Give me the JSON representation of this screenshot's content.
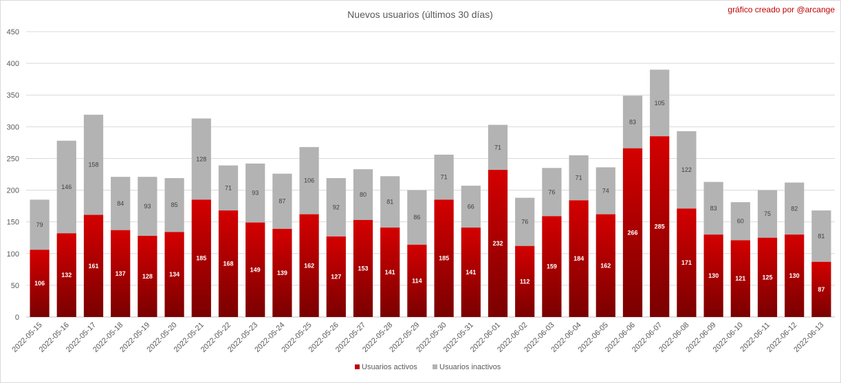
{
  "chart_data": {
    "type": "bar",
    "stacked": true,
    "title": "Nuevos usuarios (últimos 30 días)",
    "credit": "gráfico creado por @arcange",
    "categories": [
      "2022-05-15",
      "2022-05-16",
      "2022-05-17",
      "2022-05-18",
      "2022-05-19",
      "2022-05-20",
      "2022-05-21",
      "2022-05-22",
      "2022-05-23",
      "2022-05-24",
      "2022-05-25",
      "2022-05-26",
      "2022-05-27",
      "2022-05-28",
      "2022-05-29",
      "2022-05-30",
      "2022-05-31",
      "2022-06-01",
      "2022-06-02",
      "2022-06-03",
      "2022-06-04",
      "2022-06-05",
      "2022-06-06",
      "2022-06-07",
      "2022-06-08",
      "2022-06-09",
      "2022-06-10",
      "2022-06-11",
      "2022-06-12",
      "2022-06-13"
    ],
    "series": [
      {
        "name": "Usuarios activos",
        "color": "#c00000",
        "values": [
          106,
          132,
          161,
          137,
          128,
          134,
          185,
          168,
          149,
          139,
          162,
          127,
          153,
          141,
          114,
          185,
          141,
          232,
          112,
          159,
          184,
          162,
          266,
          285,
          171,
          130,
          121,
          125,
          130,
          87
        ]
      },
      {
        "name": "Usuarios inactivos",
        "color": "#b3b3b3",
        "values": [
          79,
          146,
          158,
          84,
          93,
          85,
          128,
          71,
          93,
          87,
          106,
          92,
          80,
          81,
          86,
          71,
          66,
          71,
          76,
          76,
          71,
          74,
          83,
          105,
          122,
          83,
          60,
          75,
          82,
          81
        ]
      }
    ],
    "yticks": [
      "0",
      "50",
      "100",
      "150",
      "200",
      "250",
      "300",
      "350",
      "400",
      "450"
    ],
    "ylim": [
      0,
      450
    ],
    "grid": true,
    "legend_position": "bottom"
  }
}
